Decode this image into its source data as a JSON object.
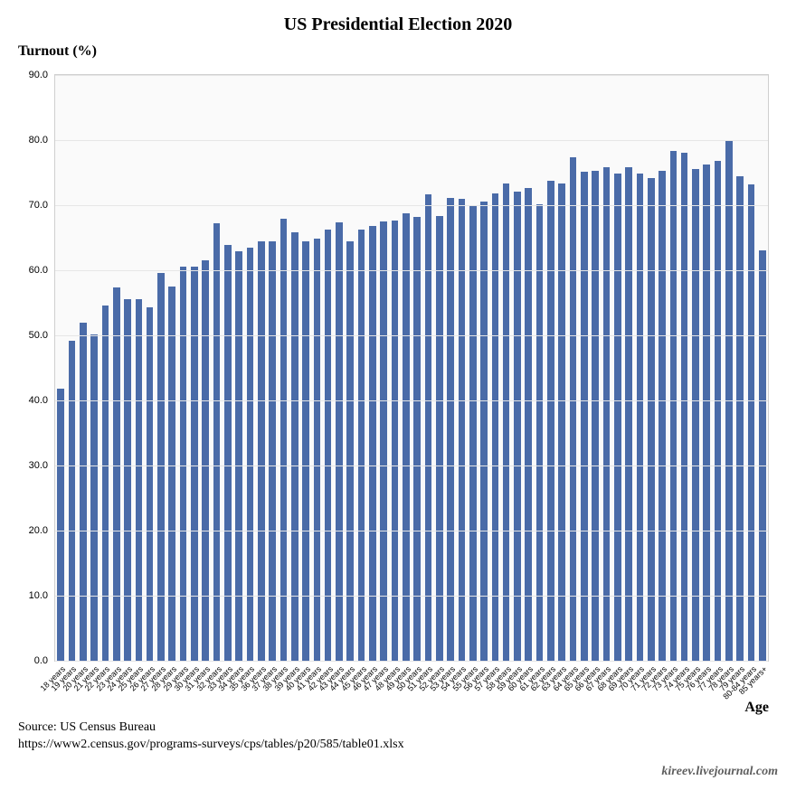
{
  "title": "US Presidential Election 2020",
  "ylabel": "Turnout (%)",
  "xlabel": "Age",
  "source_label": "Source: US Census Bureau",
  "source_url": "https://www2.census.gov/programs-surveys/cps/tables/p20/585/table01.xlsx",
  "credit": "kireev.livejournal.com",
  "chart": {
    "type": "bar",
    "ylim": [
      0,
      90
    ],
    "ytick_step": 10,
    "ytick_decimals": 1,
    "bar_color": "#4a6ba8",
    "background_color": "#fafafa",
    "grid_color": "#e6e6e6",
    "plot_border_color": "#cfcfcf",
    "title_fontsize": 20,
    "label_fontsize": 16,
    "tick_fontsize": 11,
    "xtick_fontsize": 9,
    "xtick_rotation": -45,
    "bar_width_ratio": 0.62,
    "categories": [
      "18 years",
      "19 years",
      "20 years",
      "21 years",
      "22 years",
      "23 years",
      "24 years",
      "25 years",
      "26 years",
      "27 years",
      "28 years",
      "29 years",
      "30 years",
      "31 years",
      "32 years",
      "33 years",
      "34 years",
      "35 years",
      "36 years",
      "37 years",
      "38 years",
      "39 years",
      "40 years",
      "41 years",
      "42 years",
      "43 years",
      "44 years",
      "45 years",
      "46 years",
      "47 years",
      "48 years",
      "49 years",
      "50 years",
      "51 years",
      "52 years",
      "53 years",
      "54 years",
      "55 years",
      "56 years",
      "57 years",
      "58 years",
      "59 years",
      "60 years",
      "61 years",
      "62 years",
      "63 years",
      "64 years",
      "65 years",
      "66 years",
      "67 years",
      "68 years",
      "69 years",
      "70 years",
      "71 years",
      "72 years",
      "73 years",
      "74 years",
      "75 years",
      "76 years",
      "77 years",
      "78 years",
      "79 years",
      "80-84 years",
      "85 years+"
    ],
    "values": [
      41.8,
      49.2,
      51.9,
      50.2,
      54.6,
      57.3,
      55.5,
      55.6,
      54.3,
      59.6,
      57.5,
      60.5,
      60.6,
      61.5,
      67.2,
      63.9,
      62.9,
      63.5,
      64.4,
      64.5,
      67.9,
      65.8,
      64.4,
      64.8,
      66.2,
      67.3,
      64.5,
      66.2,
      66.8,
      67.5,
      67.7,
      68.8,
      68.2,
      71.6,
      68.3,
      71.1,
      71.0,
      70.0,
      70.5,
      71.8,
      73.3,
      72.1,
      72.6,
      70.1,
      73.8,
      73.3,
      77.3,
      75.1,
      75.3,
      75.9,
      74.9,
      75.9,
      74.9,
      74.2,
      75.3,
      78.3,
      78.0,
      75.5,
      76.3,
      76.8,
      79.8,
      74.4,
      73.2,
      63.0
    ]
  }
}
